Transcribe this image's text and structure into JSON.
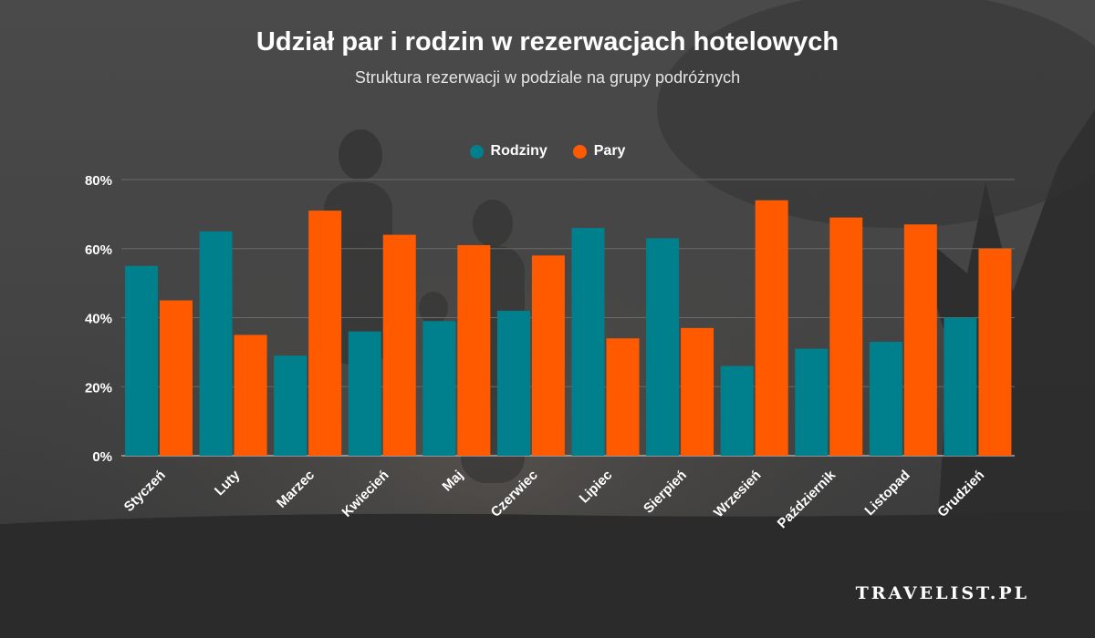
{
  "title": "Udział par i rodzin w rezerwacjach hotelowych",
  "subtitle": "Struktura rezerwacji w podziale na grupy podróżnych",
  "brand": "TRAVELIST.PL",
  "colors": {
    "rodziny": "#00808C",
    "pary": "#FF5A00",
    "background": "#3a3a3a"
  },
  "chart_data": {
    "type": "bar",
    "title": "Udział par i rodzin w rezerwacjach hotelowych",
    "subtitle": "Struktura rezerwacji w podziale na grupy podróżnych",
    "categories": [
      "Styczeń",
      "Luty",
      "Marzec",
      "Kwiecień",
      "Maj",
      "Czerwiec",
      "Lipiec",
      "Sierpień",
      "Wrzesień",
      "Październik",
      "Listopad",
      "Grudzień"
    ],
    "series": [
      {
        "name": "Rodziny",
        "color": "#00808C",
        "values": [
          55,
          65,
          29,
          36,
          39,
          42,
          66,
          63,
          26,
          31,
          33,
          40
        ]
      },
      {
        "name": "Pary",
        "color": "#FF5A00",
        "values": [
          45,
          35,
          71,
          64,
          61,
          58,
          34,
          37,
          74,
          69,
          67,
          60
        ]
      }
    ],
    "ylim": [
      0,
      80
    ],
    "yticks": [
      "0%",
      "20%",
      "40%",
      "60%",
      "80%"
    ],
    "grid": true,
    "legend": "top-center"
  }
}
